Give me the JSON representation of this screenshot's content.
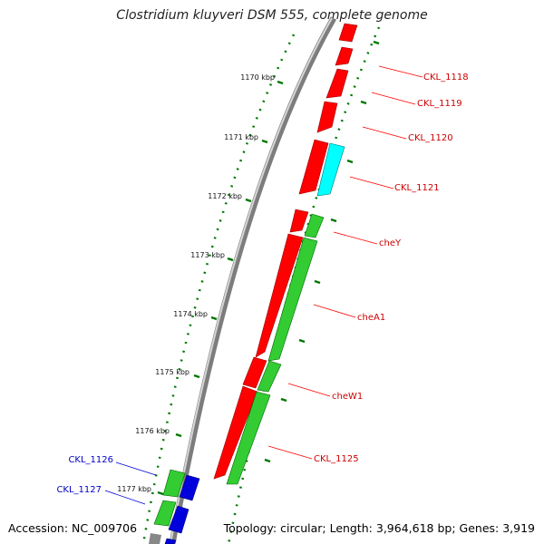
{
  "title": "Clostridium kluyveri DSM 555, complete genome",
  "footer": {
    "accession": "Accession: NC_009706",
    "summary": "Topology: circular; Length: 3,964,618 bp; Genes: 3,919"
  },
  "colors": {
    "red": "#ff0000",
    "cyan": "#00ffff",
    "green": "#33cc33",
    "blue": "#0000dd",
    "gray": "#888888",
    "tick_green": "#007700",
    "label_red": "#cc0000",
    "label_blue": "#0000cc"
  },
  "kbp_labels": [
    "1170 kbp",
    "1171 kbp",
    "1172 kbp",
    "1173 kbp",
    "1174 kbp",
    "1175 kbp",
    "1176 kbp",
    "1177 kbp"
  ],
  "gene_labels": [
    {
      "text": "CKL_1118",
      "color": "red"
    },
    {
      "text": "CKL_1119",
      "color": "red"
    },
    {
      "text": "CKL_1120",
      "color": "red"
    },
    {
      "text": "CKL_1121",
      "color": "red"
    },
    {
      "text": "cheY",
      "color": "red"
    },
    {
      "text": "cheA1",
      "color": "red"
    },
    {
      "text": "cheW1",
      "color": "red"
    },
    {
      "text": "CKL_1125",
      "color": "red"
    },
    {
      "text": "CKL_1126",
      "color": "blue"
    },
    {
      "text": "CKL_1127",
      "color": "blue"
    }
  ]
}
